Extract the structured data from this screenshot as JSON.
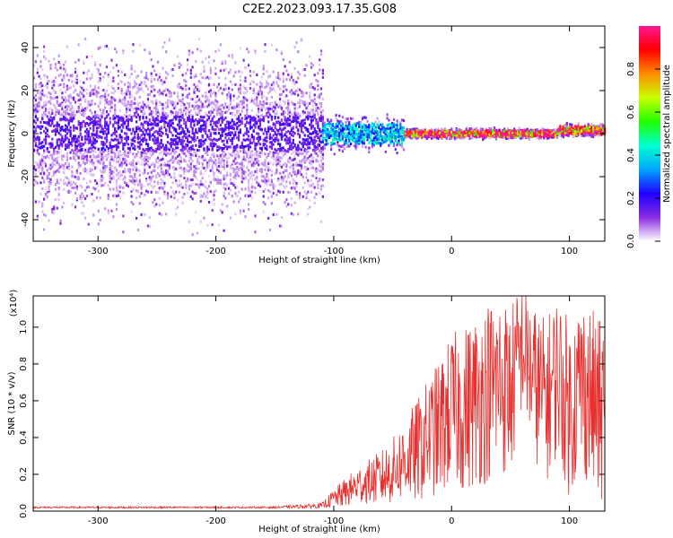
{
  "title": "C2E2.2023.093.17.35.G08",
  "chart_data": [
    {
      "type": "heatmap",
      "xlabel": "Height of straight line (km)",
      "ylabel": "Frequency (Hz)",
      "xlim": [
        -355,
        130
      ],
      "ylim": [
        -50,
        50
      ],
      "xticks": [
        -300,
        -200,
        -100,
        0,
        100
      ],
      "yticks": [
        -40,
        -20,
        0,
        20,
        40
      ],
      "grid": false,
      "colorbar": {
        "label": "Normalized spectral amplitude",
        "range": [
          0,
          1
        ],
        "ticks": [
          "0.0",
          "0.2",
          "0.4",
          "0.6",
          "0.8"
        ],
        "colormap": [
          "#ffffff",
          "#8a2be2",
          "#1f00ff",
          "#00a6ff",
          "#00ffd0",
          "#22ff00",
          "#c8ff00",
          "#ff8c00",
          "#ff0000",
          "#ff1493"
        ]
      },
      "summary": [
        {
          "x_range": [
            -355,
            -110
          ],
          "center_hz": 0,
          "core_halfwidth_hz": 8,
          "spread_hz": 50,
          "typical_amplitude": 0.15
        },
        {
          "x_range": [
            -110,
            -40
          ],
          "center_hz": 0,
          "core_halfwidth_hz": 5,
          "spread_hz": 10,
          "typical_amplitude": 0.35
        },
        {
          "x_range": [
            -40,
            90
          ],
          "center_hz": 0,
          "core_halfwidth_hz": 1.5,
          "spread_hz": 3,
          "typical_amplitude": 0.9
        },
        {
          "x_range": [
            90,
            130
          ],
          "center_hz": 1.5,
          "core_halfwidth_hz": 2,
          "spread_hz": 4,
          "typical_amplitude": 0.85
        }
      ]
    },
    {
      "type": "line",
      "xlabel": "Height of straight line (km)",
      "ylabel": "SNR (10 * v/v)",
      "y_multiplier_label": "(x10⁴)",
      "xlim": [
        -355,
        130
      ],
      "ylim": [
        0,
        1.17
      ],
      "xticks": [
        -300,
        -200,
        -100,
        0,
        100
      ],
      "yticks": [
        "0.0",
        "0.2",
        "0.4",
        "0.6",
        "0.8",
        "1.0"
      ],
      "series": [
        {
          "color": "#e8302e",
          "x": [
            -355,
            -300,
            -250,
            -200,
            -150,
            -110,
            -100,
            -90,
            -80,
            -70,
            -60,
            -50,
            -40,
            -30,
            -20,
            -10,
            0,
            10,
            20,
            30,
            40,
            50,
            60,
            70,
            80,
            90,
            100,
            110,
            120,
            130
          ],
          "y": [
            0.02,
            0.02,
            0.02,
            0.02,
            0.02,
            0.03,
            0.07,
            0.1,
            0.14,
            0.16,
            0.18,
            0.22,
            0.28,
            0.32,
            0.4,
            0.45,
            0.55,
            0.55,
            0.6,
            0.65,
            0.7,
            0.65,
            0.9,
            0.7,
            0.6,
            0.75,
            0.55,
            0.7,
            0.6,
            0.5
          ],
          "noise_amplitude": [
            0.005,
            0.005,
            0.005,
            0.005,
            0.005,
            0.015,
            0.05,
            0.08,
            0.1,
            0.12,
            0.15,
            0.18,
            0.22,
            0.28,
            0.32,
            0.38,
            0.42,
            0.45,
            0.48,
            0.5,
            0.5,
            0.48,
            0.35,
            0.42,
            0.45,
            0.45,
            0.48,
            0.5,
            0.5,
            0.5
          ]
        }
      ]
    }
  ]
}
